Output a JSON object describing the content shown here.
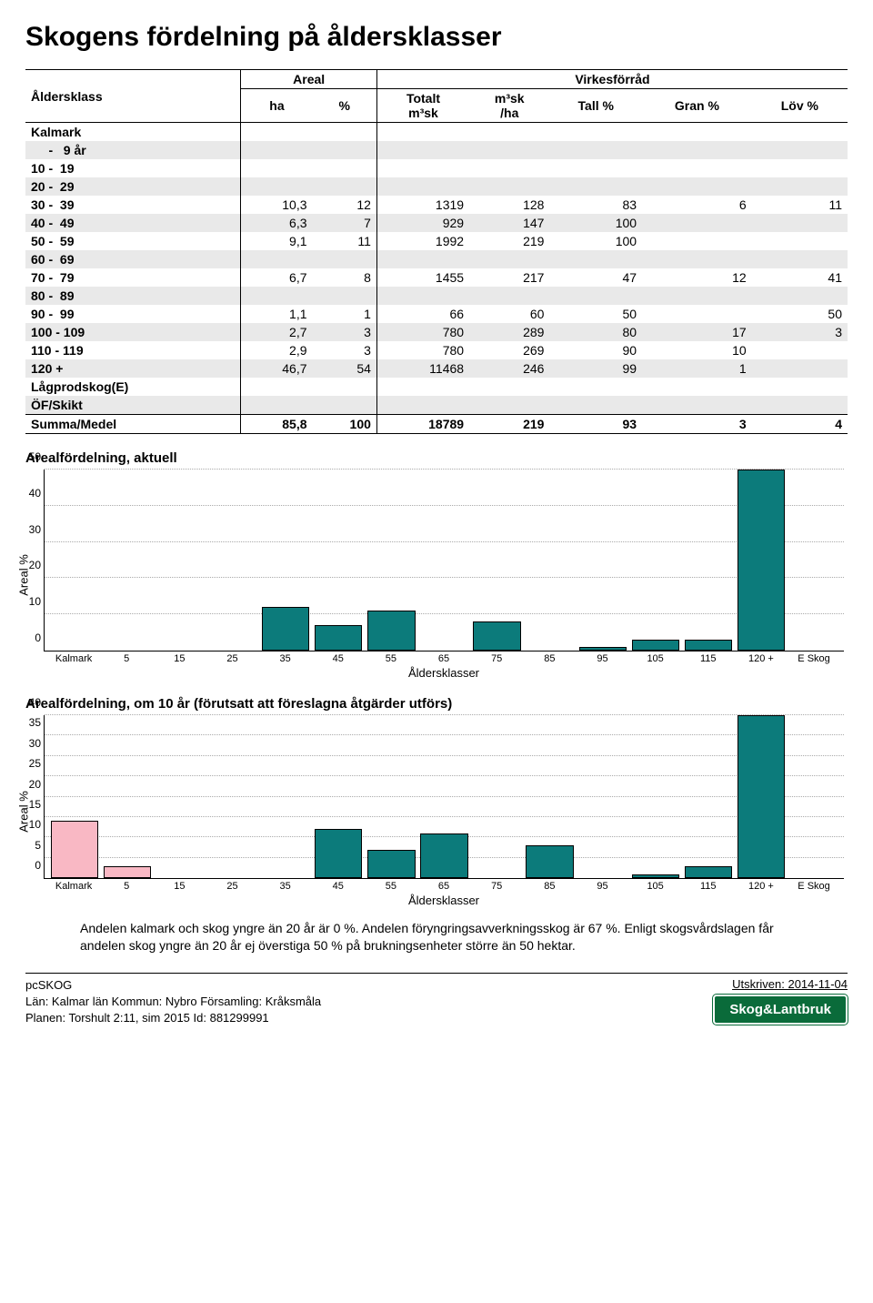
{
  "title": "Skogens fördelning på åldersklasser",
  "table": {
    "header_row1": {
      "col1": "Åldersklass",
      "colA": "Areal",
      "colB": "Virkesförråd"
    },
    "header_row2": {
      "ha": "ha",
      "pct": "%",
      "totalt": "Totalt\nm³sk",
      "m3ha": "m³sk\n/ha",
      "tall": "Tall %",
      "gran": "Gran %",
      "lov": "Löv %"
    },
    "rows": [
      {
        "label": "Kalmark",
        "shade": false
      },
      {
        "label": "     -   9 år",
        "shade": true
      },
      {
        "label": "10 -  19",
        "shade": false
      },
      {
        "label": "20 -  29",
        "shade": true
      },
      {
        "label": "30 -  39",
        "ha": "10,3",
        "pct": "12",
        "tot": "1319",
        "mha": "128",
        "tall": "83",
        "gran": "6",
        "lov": "11",
        "shade": false
      },
      {
        "label": "40 -  49",
        "ha": "6,3",
        "pct": "7",
        "tot": "929",
        "mha": "147",
        "tall": "100",
        "gran": "",
        "lov": "",
        "shade": true
      },
      {
        "label": "50 -  59",
        "ha": "9,1",
        "pct": "11",
        "tot": "1992",
        "mha": "219",
        "tall": "100",
        "gran": "",
        "lov": "",
        "shade": false
      },
      {
        "label": "60 -  69",
        "shade": true
      },
      {
        "label": "70 -  79",
        "ha": "6,7",
        "pct": "8",
        "tot": "1455",
        "mha": "217",
        "tall": "47",
        "gran": "12",
        "lov": "41",
        "shade": false
      },
      {
        "label": "80 -  89",
        "shade": true
      },
      {
        "label": "90 -  99",
        "ha": "1,1",
        "pct": "1",
        "tot": "66",
        "mha": "60",
        "tall": "50",
        "gran": "",
        "lov": "50",
        "shade": false
      },
      {
        "label": "100 - 109",
        "ha": "2,7",
        "pct": "3",
        "tot": "780",
        "mha": "289",
        "tall": "80",
        "gran": "17",
        "lov": "3",
        "shade": true
      },
      {
        "label": "110 - 119",
        "ha": "2,9",
        "pct": "3",
        "tot": "780",
        "mha": "269",
        "tall": "90",
        "gran": "10",
        "lov": "",
        "shade": false
      },
      {
        "label": "120 +",
        "ha": "46,7",
        "pct": "54",
        "tot": "11468",
        "mha": "246",
        "tall": "99",
        "gran": "1",
        "lov": "",
        "shade": true
      },
      {
        "label": "Lågprodskog(E)",
        "shade": false
      },
      {
        "label": "ÖF/Skikt",
        "shade": true
      }
    ],
    "sum": {
      "label": "Summa/Medel",
      "ha": "85,8",
      "pct": "100",
      "tot": "18789",
      "mha": "219",
      "tall": "93",
      "gran": "3",
      "lov": "4"
    }
  },
  "chart1": {
    "title": "Arealfördelning, aktuell",
    "ylabel": "Areal %",
    "ylim": 50,
    "yticks": [
      0,
      10,
      20,
      30,
      40,
      50
    ],
    "xlabels": [
      "Kalmark",
      "5",
      "15",
      "25",
      "35",
      "45",
      "55",
      "65",
      "75",
      "85",
      "95",
      "105",
      "115",
      "120 +",
      "E Skog"
    ],
    "xaxis_title": "Åldersklasser",
    "bars": [
      {
        "v": 0,
        "color": "#f9b8c4"
      },
      {
        "v": 0,
        "color": "#f9b8c4"
      },
      {
        "v": 0,
        "color": "#0c7b7b"
      },
      {
        "v": 0,
        "color": "#0c7b7b"
      },
      {
        "v": 12,
        "color": "#0c7b7b"
      },
      {
        "v": 7,
        "color": "#0c7b7b"
      },
      {
        "v": 11,
        "color": "#0c7b7b"
      },
      {
        "v": 0,
        "color": "#0c7b7b"
      },
      {
        "v": 8,
        "color": "#0c7b7b"
      },
      {
        "v": 0,
        "color": "#0c7b7b"
      },
      {
        "v": 1,
        "color": "#0c7b7b"
      },
      {
        "v": 3,
        "color": "#0c7b7b"
      },
      {
        "v": 3,
        "color": "#0c7b7b"
      },
      {
        "v": 54,
        "color": "#0c7b7b"
      },
      {
        "v": 0,
        "color": "#0c7b7b"
      }
    ]
  },
  "chart2": {
    "title": "Arealfördelning, om 10 år (förutsatt att föreslagna åtgärder utförs)",
    "ylabel": "Areal %",
    "ylim": 40,
    "yticks": [
      0,
      5,
      10,
      15,
      20,
      25,
      30,
      35,
      40
    ],
    "xlabels": [
      "Kalmark",
      "5",
      "15",
      "25",
      "35",
      "45",
      "55",
      "65",
      "75",
      "85",
      "95",
      "105",
      "115",
      "120 +",
      "E Skog"
    ],
    "xaxis_title": "Åldersklasser",
    "bars": [
      {
        "v": 14,
        "color": "#f9b8c4"
      },
      {
        "v": 3,
        "color": "#f9b8c4"
      },
      {
        "v": 0,
        "color": "#0c7b7b"
      },
      {
        "v": 0,
        "color": "#0c7b7b"
      },
      {
        "v": 0,
        "color": "#0c7b7b"
      },
      {
        "v": 12,
        "color": "#0c7b7b"
      },
      {
        "v": 7,
        "color": "#0c7b7b"
      },
      {
        "v": 11,
        "color": "#0c7b7b"
      },
      {
        "v": 0,
        "color": "#0c7b7b"
      },
      {
        "v": 8,
        "color": "#0c7b7b"
      },
      {
        "v": 0,
        "color": "#0c7b7b"
      },
      {
        "v": 1,
        "color": "#0c7b7b"
      },
      {
        "v": 3,
        "color": "#0c7b7b"
      },
      {
        "v": 40,
        "color": "#0c7b7b"
      },
      {
        "v": 0,
        "color": "#0c7b7b"
      }
    ]
  },
  "note": "Andelen kalmark och skog yngre än 20 år är 0 %. Andelen föryngringsavverkningsskog är 67 %. Enligt skogsvårdslagen får andelen skog yngre än 20 år ej överstiga 50 % på brukningsenheter större än 50 hektar.",
  "footer": {
    "pcskog": "pcSKOG",
    "line1": "Län: Kalmar län   Kommun: Nybro   Församling: Kråksmåla",
    "line2": "Planen: Torshult 2:11, sim 2015    Id: 881299991",
    "utskriven": "Utskriven: 2014-11-04",
    "brand": "Skog&Lantbruk"
  }
}
